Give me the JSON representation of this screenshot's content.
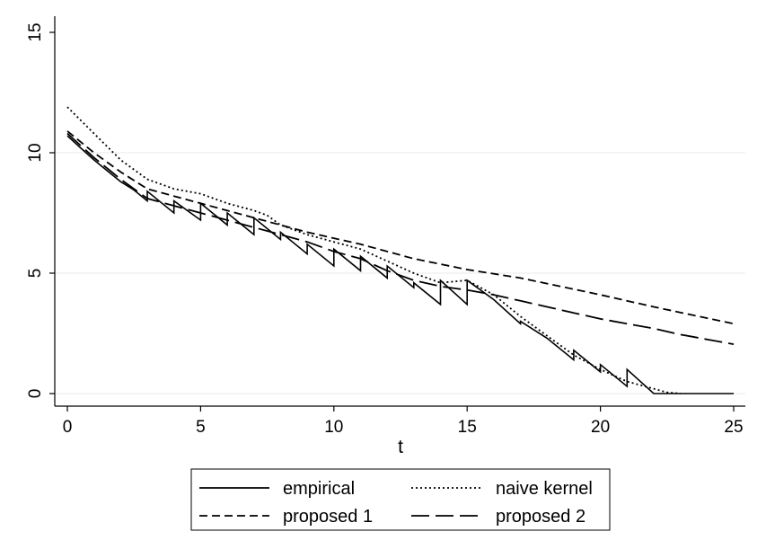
{
  "chart_data": {
    "type": "line",
    "title": "",
    "xlabel": "t",
    "ylabel": "",
    "xlim": [
      0,
      25
    ],
    "ylim": [
      0,
      15
    ],
    "xticks": [
      0,
      5,
      10,
      15,
      20,
      25
    ],
    "yticks": [
      0,
      5,
      10,
      15
    ],
    "grid": "horizontal",
    "legend_position": "bottom",
    "series": [
      {
        "name": "empirical",
        "style": "solid",
        "points": [
          [
            0,
            10.7
          ],
          [
            0.5,
            10.2
          ],
          [
            1,
            9.7
          ],
          [
            1.5,
            9.25
          ],
          [
            2,
            8.8
          ],
          [
            2.5,
            8.45
          ],
          [
            3,
            8.0
          ],
          [
            3,
            8.4
          ],
          [
            4,
            7.5
          ],
          [
            4,
            8.0
          ],
          [
            5,
            7.2
          ],
          [
            5,
            7.9
          ],
          [
            6,
            7.0
          ],
          [
            6,
            7.5
          ],
          [
            7,
            6.6
          ],
          [
            7,
            7.3
          ],
          [
            8,
            6.4
          ],
          [
            8,
            6.7
          ],
          [
            9,
            5.8
          ],
          [
            9,
            6.2
          ],
          [
            10,
            5.3
          ],
          [
            10,
            6.0
          ],
          [
            11,
            5.1
          ],
          [
            11,
            5.7
          ],
          [
            12,
            4.8
          ],
          [
            12,
            5.3
          ],
          [
            13,
            4.4
          ],
          [
            13,
            4.6
          ],
          [
            14,
            3.7
          ],
          [
            14,
            4.7
          ],
          [
            15,
            3.7
          ],
          [
            15,
            4.7
          ],
          [
            16,
            3.9
          ],
          [
            17,
            2.9
          ],
          [
            17,
            3.0
          ],
          [
            18,
            2.3
          ],
          [
            18,
            2.3
          ],
          [
            19,
            1.4
          ],
          [
            19,
            1.8
          ],
          [
            20,
            0.9
          ],
          [
            20,
            1.2
          ],
          [
            21,
            0.3
          ],
          [
            21,
            1.0
          ],
          [
            22,
            0.0
          ],
          [
            25,
            0.0
          ]
        ]
      },
      {
        "name": "naive kernel",
        "style": "dotted",
        "points": [
          [
            0,
            11.9
          ],
          [
            1,
            10.8
          ],
          [
            2,
            9.7
          ],
          [
            3,
            8.9
          ],
          [
            4,
            8.5
          ],
          [
            5,
            8.3
          ],
          [
            6,
            7.9
          ],
          [
            7,
            7.6
          ],
          [
            7.5,
            7.4
          ],
          [
            8,
            7.0
          ],
          [
            9,
            6.6
          ],
          [
            10,
            6.3
          ],
          [
            11,
            6.0
          ],
          [
            12,
            5.5
          ],
          [
            13,
            5.0
          ],
          [
            14,
            4.6
          ],
          [
            15,
            4.7
          ],
          [
            16,
            4.1
          ],
          [
            17,
            3.2
          ],
          [
            18,
            2.4
          ],
          [
            19,
            1.6
          ],
          [
            20,
            1.0
          ],
          [
            21,
            0.5
          ],
          [
            22,
            0.2
          ],
          [
            22.5,
            0.05
          ],
          [
            23,
            0.0
          ]
        ]
      },
      {
        "name": "proposed 1",
        "style": "short-dash",
        "points": [
          [
            0,
            10.9
          ],
          [
            1,
            10.0
          ],
          [
            2,
            9.2
          ],
          [
            3,
            8.5
          ],
          [
            5,
            7.9
          ],
          [
            7,
            7.3
          ],
          [
            9,
            6.7
          ],
          [
            11,
            6.2
          ],
          [
            13,
            5.6
          ],
          [
            15,
            5.15
          ],
          [
            17,
            4.8
          ],
          [
            20,
            4.1
          ],
          [
            22,
            3.6
          ],
          [
            25,
            2.9
          ]
        ]
      },
      {
        "name": "proposed 2",
        "style": "long-dash",
        "points": [
          [
            0,
            10.8
          ],
          [
            1,
            9.8
          ],
          [
            2,
            8.9
          ],
          [
            3,
            8.1
          ],
          [
            4,
            7.8
          ],
          [
            5,
            7.5
          ],
          [
            6,
            7.2
          ],
          [
            7,
            6.9
          ],
          [
            8,
            6.6
          ],
          [
            9,
            6.3
          ],
          [
            10,
            5.9
          ],
          [
            11,
            5.6
          ],
          [
            12,
            5.1
          ],
          [
            13,
            4.7
          ],
          [
            14,
            4.45
          ],
          [
            15,
            4.3
          ],
          [
            16,
            4.1
          ],
          [
            17,
            3.85
          ],
          [
            18,
            3.6
          ],
          [
            19,
            3.35
          ],
          [
            20,
            3.1
          ],
          [
            21,
            2.9
          ],
          [
            22,
            2.7
          ],
          [
            23,
            2.45
          ],
          [
            24,
            2.25
          ],
          [
            25,
            2.05
          ]
        ]
      }
    ]
  },
  "legend": {
    "items": [
      {
        "name": "empirical",
        "style": "solid"
      },
      {
        "name": "naive kernel",
        "style": "dotted"
      },
      {
        "name": "proposed 1",
        "style": "short-dash"
      },
      {
        "name": "proposed 2",
        "style": "long-dash"
      }
    ]
  },
  "colors": {
    "line": "#000000",
    "grid": "#eaeaea",
    "axis": "#000000",
    "legend_border": "#000000",
    "background": "#ffffff"
  }
}
